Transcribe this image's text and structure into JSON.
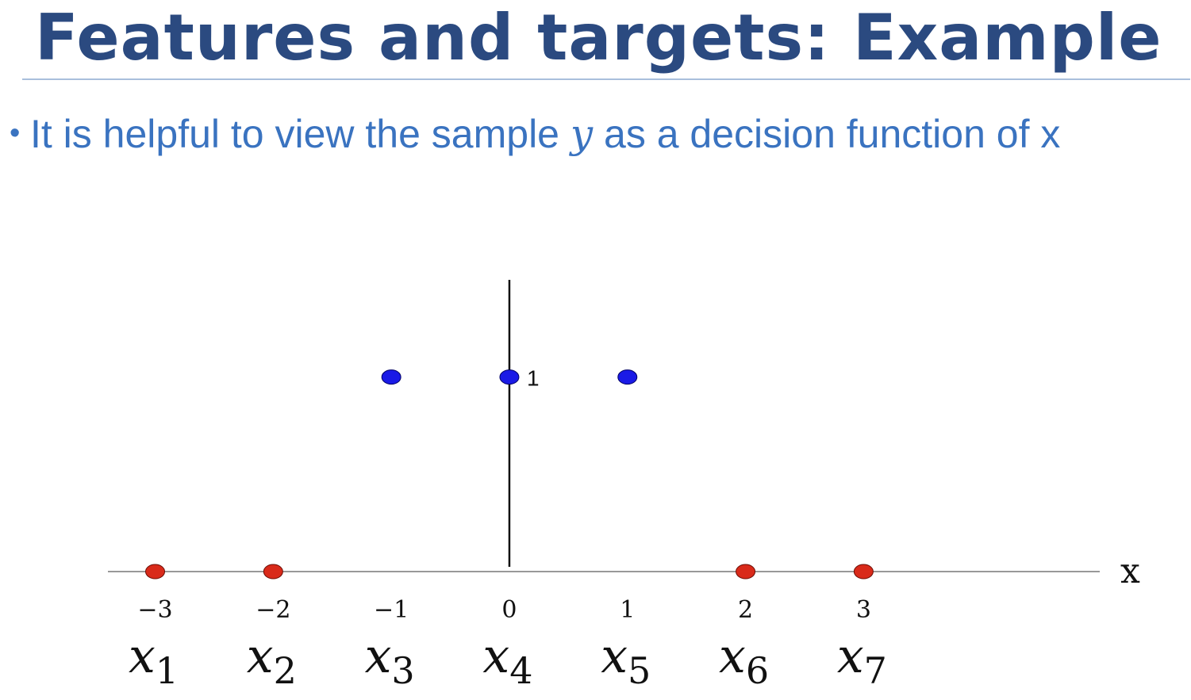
{
  "slide": {
    "title": "Features and targets: Example",
    "bullet_prefix": "It is helpful to view the sample ",
    "bullet_var": "y",
    "bullet_suffix": " as a decision function of x"
  },
  "colors": {
    "title": "#2b4a80",
    "bullet": "#3a73c0",
    "positive_point": "#1a1ae6",
    "negative_point": "#d92a1a"
  },
  "chart_data": {
    "type": "scatter",
    "title": "",
    "xlabel": "x",
    "ylabel": "",
    "xlim": [
      -3.4,
      5.0
    ],
    "ylim": [
      0,
      1.5
    ],
    "x_ticks": [
      -3,
      -2,
      -1,
      0,
      1,
      2,
      3
    ],
    "x_tick_labels": [
      "−3",
      "−2",
      "−1",
      "0",
      "1",
      "2",
      "3"
    ],
    "y_ticks": [
      1
    ],
    "y_tick_labels": [
      "1"
    ],
    "grid": false,
    "sample_labels": [
      {
        "base": "x",
        "sub": "1",
        "x": -3
      },
      {
        "base": "x",
        "sub": "2",
        "x": -2
      },
      {
        "base": "x",
        "sub": "3",
        "x": -1
      },
      {
        "base": "x",
        "sub": "4",
        "x": 0
      },
      {
        "base": "x",
        "sub": "5",
        "x": 1
      },
      {
        "base": "x",
        "sub": "6",
        "x": 2
      },
      {
        "base": "x",
        "sub": "7",
        "x": 3
      }
    ],
    "points": [
      {
        "x": -3,
        "y": 0,
        "class": "negative"
      },
      {
        "x": -2,
        "y": 0,
        "class": "negative"
      },
      {
        "x": -1,
        "y": 1,
        "class": "positive"
      },
      {
        "x": 0,
        "y": 1,
        "class": "positive"
      },
      {
        "x": 1,
        "y": 1,
        "class": "positive"
      },
      {
        "x": 2,
        "y": 0,
        "class": "negative"
      },
      {
        "x": 3,
        "y": 0,
        "class": "negative"
      }
    ]
  }
}
